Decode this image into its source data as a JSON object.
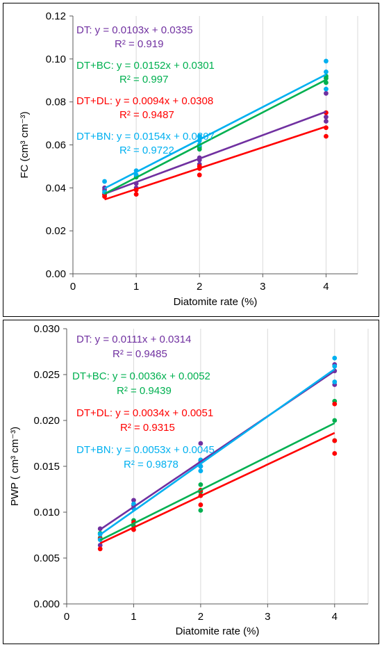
{
  "colors": {
    "DT": "#7030A0",
    "DT+BC": "#00B050",
    "DT+DL": "#FF0000",
    "DT+BN": "#00B0F0",
    "grid": "#d9d9d9",
    "axis": "#595959",
    "text": "#000000",
    "frame": "#000000"
  },
  "chart_data": [
    {
      "type": "scatter",
      "title": "",
      "xlabel": "Diatomite rate (%)",
      "ylabel": "FC (cm³ cm⁻³)",
      "xlim": [
        0,
        4.5
      ],
      "ylim": [
        0,
        0.12
      ],
      "xticks": [
        0,
        1,
        2,
        3,
        4
      ],
      "yticks": [
        0.0,
        0.02,
        0.04,
        0.06,
        0.08,
        0.1,
        0.12
      ],
      "ytick_labels": [
        "0.00",
        "0.02",
        "0.04",
        "0.06",
        "0.08",
        "0.10",
        "0.12"
      ],
      "grid": "vertical",
      "series": [
        {
          "name": "DT",
          "color_key": "DT",
          "points": [
            [
              0.5,
              0.039
            ],
            [
              0.5,
              0.04
            ],
            [
              1,
              0.04
            ],
            [
              1,
              0.042
            ],
            [
              2,
              0.051
            ],
            [
              2,
              0.053
            ],
            [
              2,
              0.054
            ],
            [
              4,
              0.071
            ],
            [
              4,
              0.073
            ],
            [
              4,
              0.084
            ]
          ],
          "fit": {
            "slope": 0.0103,
            "intercept": 0.0335
          },
          "equation": "DT: y = 0.0103x + 0.0335",
          "r2": "R² = 0.919"
        },
        {
          "name": "DT+BC",
          "color_key": "DT+BC",
          "points": [
            [
              0.5,
              0.037
            ],
            [
              0.5,
              0.038
            ],
            [
              1,
              0.045
            ],
            [
              1,
              0.046
            ],
            [
              2,
              0.058
            ],
            [
              2,
              0.059
            ],
            [
              2,
              0.06
            ],
            [
              4,
              0.089
            ],
            [
              4,
              0.091
            ],
            [
              4,
              0.092
            ]
          ],
          "fit": {
            "slope": 0.0152,
            "intercept": 0.0301
          },
          "equation": "DT+BC: y = 0.0152x + 0.0301",
          "r2": "R² = 0.997"
        },
        {
          "name": "DT+DL",
          "color_key": "DT+DL",
          "points": [
            [
              0.5,
              0.036
            ],
            [
              0.5,
              0.037
            ],
            [
              1,
              0.037
            ],
            [
              1,
              0.039
            ],
            [
              2,
              0.046
            ],
            [
              2,
              0.049
            ],
            [
              2,
              0.05
            ],
            [
              4,
              0.064
            ],
            [
              4,
              0.068
            ],
            [
              4,
              0.075
            ]
          ],
          "fit": {
            "slope": 0.0094,
            "intercept": 0.0308
          },
          "equation": "DT+DL: y = 0.0094x + 0.0308",
          "r2": "R² = 0.9487"
        },
        {
          "name": "DT+BN",
          "color_key": "DT+BN",
          "points": [
            [
              0.5,
              0.038
            ],
            [
              0.5,
              0.043
            ],
            [
              1,
              0.046
            ],
            [
              1,
              0.048
            ],
            [
              2,
              0.06
            ],
            [
              2,
              0.062
            ],
            [
              2,
              0.064
            ],
            [
              4,
              0.086
            ],
            [
              4,
              0.094
            ],
            [
              4,
              0.099
            ]
          ],
          "fit": {
            "slope": 0.0154,
            "intercept": 0.0307
          },
          "equation": "DT+BN: y = 0.0154x + 0.0307",
          "r2": "R² = 0.9722"
        }
      ]
    },
    {
      "type": "scatter",
      "title": "",
      "xlabel": "Diatomite rate (%)",
      "ylabel": "PWP ( cm³ cm⁻³)",
      "xlim": [
        0,
        4.5
      ],
      "ylim": [
        0,
        0.03
      ],
      "xticks": [
        0,
        1,
        2,
        3,
        4
      ],
      "yticks": [
        0.0,
        0.005,
        0.01,
        0.015,
        0.02,
        0.025,
        0.03
      ],
      "ytick_labels": [
        "0.000",
        "0.005",
        "0.010",
        "0.015",
        "0.020",
        "0.025",
        "0.030"
      ],
      "grid": "vertical",
      "series": [
        {
          "name": "DT",
          "color_key": "DT",
          "points": [
            [
              0.5,
              0.0064
            ],
            [
              0.5,
              0.0082
            ],
            [
              1,
              0.0107
            ],
            [
              1,
              0.0113
            ],
            [
              2,
              0.015
            ],
            [
              2,
              0.0156
            ],
            [
              2,
              0.0175
            ],
            [
              4,
              0.0239
            ],
            [
              4,
              0.0254
            ],
            [
              4,
              0.0261
            ]
          ],
          "fit": {
            "slope": 0.0111,
            "intercept": 0.0314
          },
          "equation": "DT: y = 0.0111x + 0.0314",
          "r2": "R² = 0.9485"
        },
        {
          "name": "DT+BC",
          "color_key": "DT+BC",
          "points": [
            [
              0.5,
              0.0072
            ],
            [
              0.5,
              0.0077
            ],
            [
              1,
              0.0085
            ],
            [
              1,
              0.0091
            ],
            [
              2,
              0.0102
            ],
            [
              2,
              0.0122
            ],
            [
              2,
              0.013
            ],
            [
              4,
              0.0178
            ],
            [
              4,
              0.02
            ],
            [
              4,
              0.0221
            ]
          ],
          "fit": {
            "slope": 0.0036,
            "intercept": 0.0052
          },
          "equation": "DT+BC: y = 0.0036x + 0.0052",
          "r2": "R² = 0.9439"
        },
        {
          "name": "DT+DL",
          "color_key": "DT+DL",
          "points": [
            [
              0.5,
              0.006
            ],
            [
              0.5,
              0.0071
            ],
            [
              1,
              0.0081
            ],
            [
              1,
              0.0089
            ],
            [
              2,
              0.0108
            ],
            [
              2,
              0.0118
            ],
            [
              2,
              0.0124
            ],
            [
              4,
              0.0164
            ],
            [
              4,
              0.0178
            ],
            [
              4,
              0.0218
            ]
          ],
          "fit": {
            "slope": 0.0034,
            "intercept": 0.0051
          },
          "equation": "DT+DL: y = 0.0034x + 0.0051",
          "r2": "R² = 0.9315"
        },
        {
          "name": "DT+BN",
          "color_key": "DT+BN",
          "points": [
            [
              0.5,
              0.007
            ],
            [
              0.5,
              0.0076
            ],
            [
              1,
              0.0104
            ],
            [
              1,
              0.0109
            ],
            [
              2,
              0.0145
            ],
            [
              2,
              0.015
            ],
            [
              2,
              0.0157
            ],
            [
              4,
              0.0242
            ],
            [
              4,
              0.0259
            ],
            [
              4,
              0.0268
            ]
          ],
          "fit": {
            "slope": 0.0053,
            "intercept": 0.0045
          },
          "equation": "DT+BN: y = 0.0053x + 0.0045",
          "r2": "R² = 0.9878"
        }
      ]
    }
  ]
}
